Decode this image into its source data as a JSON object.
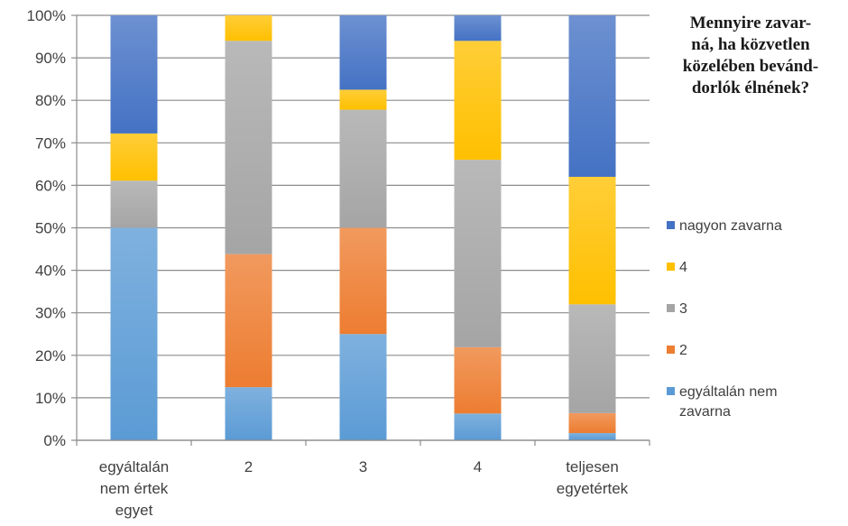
{
  "chart_data": {
    "type": "bar",
    "stacked": true,
    "title": "Mennyire zavar-\nná, ha közvetlen\nközelében bevánd-\ndorlók élnének?",
    "categories": [
      "egyáltalán\nnem értek\negyet",
      "2",
      "3",
      "4",
      "teljesen\negyetértek"
    ],
    "series": [
      {
        "name": "egyáltalán nem\nzavarna",
        "color": "#5b9bd5",
        "values": [
          50,
          12.5,
          25,
          6.3,
          1.7
        ]
      },
      {
        "name": "2",
        "color": "#ed7d31",
        "values": [
          0,
          31.3,
          25,
          15.6,
          4.7
        ]
      },
      {
        "name": "3",
        "color": "#a5a5a5",
        "values": [
          11.1,
          50.2,
          27.8,
          44.1,
          25.6
        ]
      },
      {
        "name": "4",
        "color": "#ffc000",
        "values": [
          11.1,
          6,
          4.7,
          28,
          30
        ]
      },
      {
        "name": "nagyon zavarna",
        "color": "#4472c4",
        "values": [
          27.8,
          0,
          17.5,
          6,
          38
        ]
      }
    ],
    "yticks": [
      "0%",
      "10%",
      "20%",
      "30%",
      "40%",
      "50%",
      "60%",
      "70%",
      "80%",
      "90%",
      "100%"
    ],
    "ylim": [
      0,
      100
    ],
    "grid": true,
    "legend": "right"
  }
}
